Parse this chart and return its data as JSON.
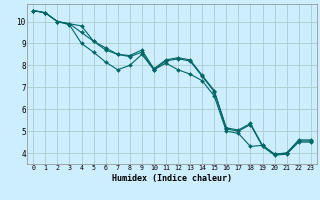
{
  "xlabel": "Humidex (Indice chaleur)",
  "background_color": "#cceeff",
  "grid_color": "#aacccc",
  "line_color": "#006666",
  "xlim": [
    -0.5,
    23.5
  ],
  "ylim": [
    3.5,
    10.8
  ],
  "xticks": [
    0,
    1,
    2,
    3,
    4,
    5,
    6,
    7,
    8,
    9,
    10,
    11,
    12,
    13,
    14,
    15,
    16,
    17,
    18,
    19,
    20,
    21,
    22,
    23
  ],
  "yticks": [
    4,
    5,
    6,
    7,
    8,
    9,
    10
  ],
  "series": [
    [
      10.5,
      10.4,
      10.0,
      9.9,
      9.8,
      9.1,
      8.7,
      8.5,
      8.4,
      8.6,
      7.8,
      8.2,
      8.3,
      8.2,
      7.5,
      6.8,
      5.1,
      5.0,
      5.3,
      4.3,
      3.9,
      3.95,
      4.5,
      4.5
    ],
    [
      10.5,
      10.4,
      10.0,
      9.9,
      9.5,
      9.1,
      8.8,
      8.5,
      8.45,
      8.7,
      7.85,
      8.25,
      8.35,
      8.25,
      7.55,
      6.85,
      5.15,
      5.05,
      5.35,
      4.35,
      3.95,
      4.0,
      4.55,
      4.55
    ],
    [
      10.5,
      10.4,
      10.0,
      9.85,
      9.0,
      8.6,
      8.15,
      7.8,
      8.0,
      8.5,
      7.8,
      8.1,
      7.8,
      7.6,
      7.3,
      6.6,
      5.0,
      4.9,
      4.3,
      4.35,
      3.95,
      4.0,
      4.6,
      4.6
    ]
  ]
}
